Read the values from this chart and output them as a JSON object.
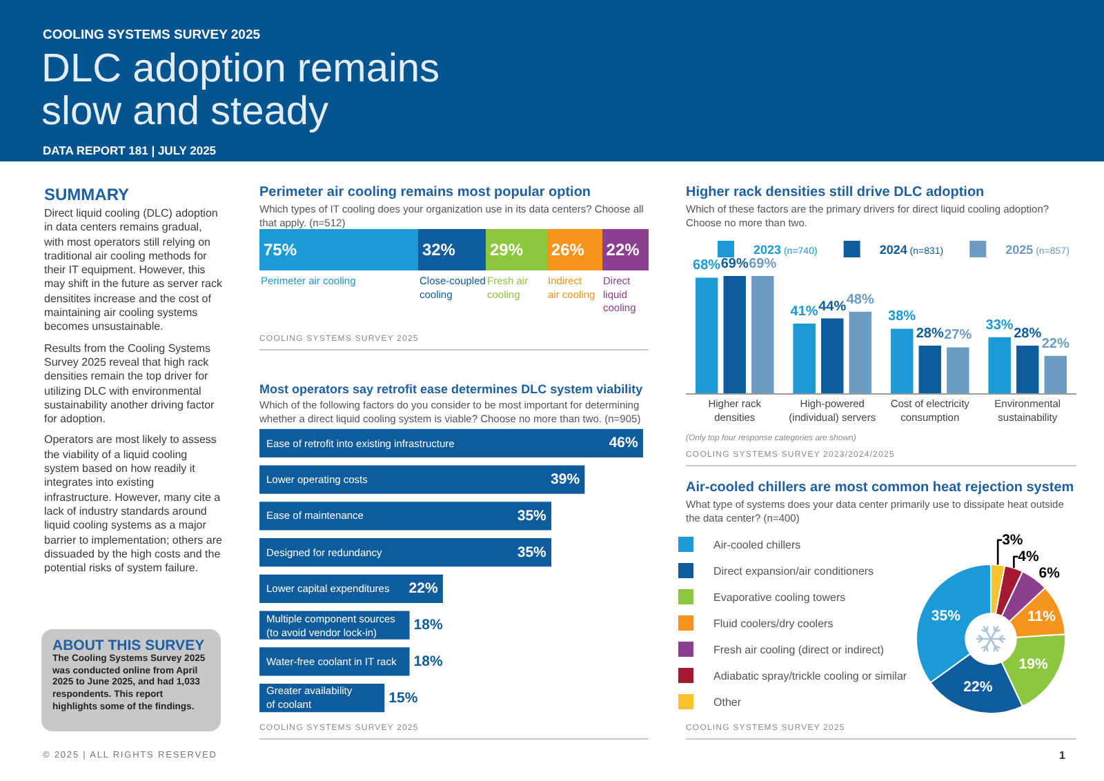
{
  "chart_data": [
    {
      "type": "other",
      "title": "DLC adoption remains slow and steady",
      "subtitle": "COOLING SYSTEMS SURVEY 2025",
      "annotations": [
        "DATA REPORT 181 | JULY 2025",
        "© 2025 | ALL RIGHTS RESERVED",
        "1"
      ]
    },
    {
      "type": "other",
      "title": "SUMMARY",
      "annotations": [
        "Direct liquid cooling (DLC) adoption in data centers remains gradual, with most operators still relying on traditional air cooling methods for their IT equipment. However, this may shift in the future as server rack densitites increase and the cost of maintaining air cooling systems becomes unsustainable.",
        "Results from the Cooling Systems Survey 2025 reveal that high rack densities remain the top driver for utilizing DLC with environmental sustainability another driving factor for adoption.",
        "Operators are most likely to assess the viability of a liquid cooling system based on how readily it integrates into existing infrastructure. However, many cite a lack of industry standards around liquid cooling systems as a major barrier to implementation; others are dissuaded by the high costs and the potential risks of system failure."
      ]
    },
    {
      "type": "other",
      "title": "ABOUT THIS SURVEY",
      "annotations": [
        "The Cooling Systems Survey 2025 was conducted online from April 2025 to June 2025, and had 1,033 respondents. This report highlights some of the findings."
      ]
    },
    {
      "type": "bar",
      "title": "Perimeter air cooling remains most popular option",
      "subtitle": "Which types of IT cooling does your organization use in its data centers? Choose all that apply. (n=512)",
      "orientation": "horizontal",
      "stacked": true,
      "categories": [
        null
      ],
      "series": [
        {
          "name": "Perimeter air cooling",
          "color": "#1b9ad6",
          "values": [
            75
          ],
          "value_labels": [
            "75%"
          ]
        },
        {
          "name": "Close-coupled cooling",
          "color": "#0e5c9d",
          "values": [
            32
          ],
          "value_labels": [
            "32%"
          ]
        },
        {
          "name": "Fresh air cooling",
          "color": "#8dc63f",
          "values": [
            29
          ],
          "value_labels": [
            "29%"
          ]
        },
        {
          "name": "Indirect air cooling",
          "color": "#f7941d",
          "values": [
            26
          ],
          "value_labels": [
            "26%"
          ]
        },
        {
          "name": "Direct liquid cooling",
          "color": "#8b3f8e",
          "values": [
            22
          ],
          "value_labels": [
            "22%"
          ]
        }
      ],
      "annotations": [
        "COOLING SYSTEMS SURVEY 2025"
      ]
    },
    {
      "type": "bar",
      "title": "Most operators say retrofit ease determines DLC system viability",
      "subtitle": "Which of the following factors do you consider to be most important for determining whether a direct liquid cooling system is viable? Choose no more than two. (n=905)",
      "orientation": "horizontal",
      "categories": [
        "Ease of retrofit into existing infrastructure",
        "Lower operating costs",
        "Ease of maintenance",
        "Designed for redundancy",
        "Lower capital expenditures",
        "Multiple component sources (to avoid vendor lock-in)",
        "Water-free coolant in IT rack",
        "Greater availability of coolant"
      ],
      "values": [
        46,
        39,
        35,
        35,
        22,
        18,
        18,
        15
      ],
      "value_labels": [
        "46%",
        "39%",
        "35%",
        "35%",
        "22%",
        "18%",
        "18%",
        "15%"
      ],
      "color": "#0e5c9d",
      "annotations": [
        "COOLING SYSTEMS SURVEY 2025"
      ]
    },
    {
      "type": "bar",
      "title": "Higher rack densities still drive DLC adoption",
      "subtitle": "Which of these factors are the primary drivers for direct liquid cooling adoption? Choose no more than two.",
      "categories": [
        "Higher rack densities",
        "High-powered (individual) servers",
        "Cost of electricity consumption",
        "Environmental sustainability"
      ],
      "series": [
        {
          "name": "2023 (n=740)",
          "color": "#1b9ad6",
          "values": [
            68,
            41,
            38,
            33
          ],
          "value_labels": [
            "68%",
            "41%",
            "38%",
            "33%"
          ]
        },
        {
          "name": "2024 (n=831)",
          "color": "#0e5c9d",
          "values": [
            69,
            44,
            28,
            28
          ],
          "value_labels": [
            "69%",
            "44%",
            "28%",
            "28%"
          ]
        },
        {
          "name": "2025 (n=857)",
          "color": "#6c9cc3",
          "values": [
            69,
            48,
            27,
            22
          ],
          "value_labels": [
            "69%",
            "48%",
            "27%",
            "22%"
          ]
        }
      ],
      "legend": "top right",
      "annotations": [
        "(Only top four response categories are shown)",
        "COOLING SYSTEMS SURVEY 2023/2024/2025"
      ]
    },
    {
      "type": "donut",
      "title": "Air-cooled chillers are most common heat rejection system",
      "subtitle": "What type of systems does your data center primarily use to dissipate heat outside the data center? (n=400)",
      "categories": [
        "Air-cooled chillers",
        "Direct expansion/air conditioners",
        "Evaporative cooling towers",
        "Fluid coolers/dry coolers",
        "Fresh air cooling (direct or indirect)",
        "Adiabatic spray/trickle cooling or similar",
        "Other"
      ],
      "values": [
        35,
        22,
        19,
        11,
        6,
        4,
        3
      ],
      "colors": [
        "#1b9ad6",
        "#0e5c9d",
        "#8dc63f",
        "#f7941d",
        "#8b3f8e",
        "#a3192f",
        "#f9c22e"
      ],
      "value_labels": [
        "35%",
        "22%",
        "19%",
        "11%",
        "6%",
        "4%",
        "3%"
      ],
      "legend": "left",
      "annotations": [
        "COOLING SYSTEMS SURVEY 2025"
      ]
    }
  ]
}
